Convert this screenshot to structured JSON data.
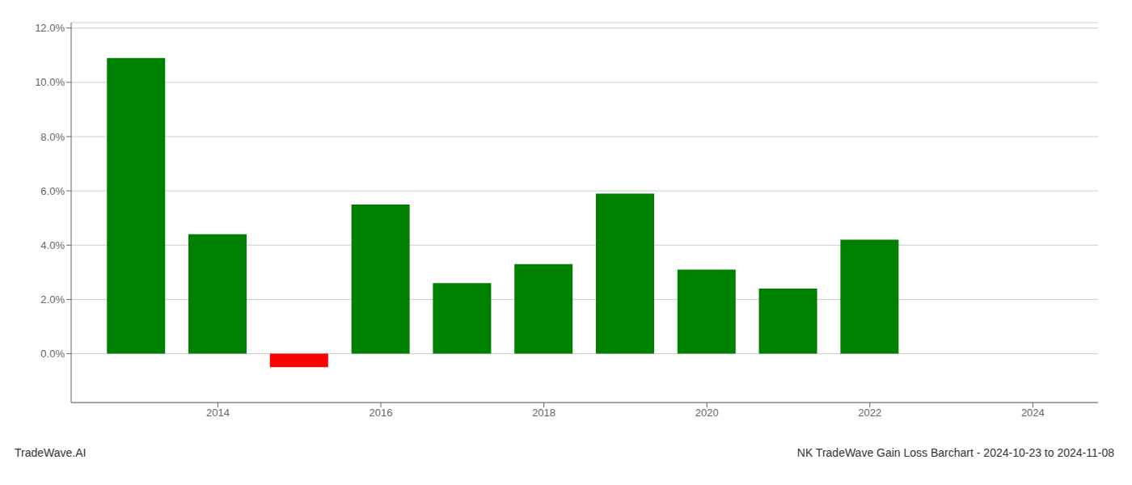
{
  "chart_data": {
    "type": "bar",
    "x": [
      2013,
      2014,
      2015,
      2016,
      2017,
      2018,
      2019,
      2020,
      2021,
      2022,
      2023
    ],
    "values": [
      0.109,
      0.044,
      -0.005,
      0.055,
      0.026,
      0.033,
      0.059,
      0.031,
      0.024,
      0.042,
      0.0
    ],
    "colors": [
      "#008000",
      "#008000",
      "#ff0000",
      "#008000",
      "#008000",
      "#008000",
      "#008000",
      "#008000",
      "#008000",
      "#008000",
      "#008000"
    ],
    "xlim": [
      2012.2,
      2024.8
    ],
    "xticks": [
      2014,
      2016,
      2018,
      2020,
      2022,
      2024
    ],
    "ylim": [
      -0.018,
      0.122
    ],
    "yticks": [
      {
        "value": 0.0,
        "label": "0.0%"
      },
      {
        "value": 0.02,
        "label": "2.0%"
      },
      {
        "value": 0.04,
        "label": "4.0%"
      },
      {
        "value": 0.06,
        "label": "6.0%"
      },
      {
        "value": 0.08,
        "label": "8.0%"
      },
      {
        "value": 0.1,
        "label": "10.0%"
      },
      {
        "value": 0.12,
        "label": "12.0%"
      }
    ],
    "grid": true,
    "annotations": [
      "TradeWave.AI",
      "NK TradeWave Gain Loss Barchart - 2024-10-23 to 2024-11-08"
    ]
  }
}
